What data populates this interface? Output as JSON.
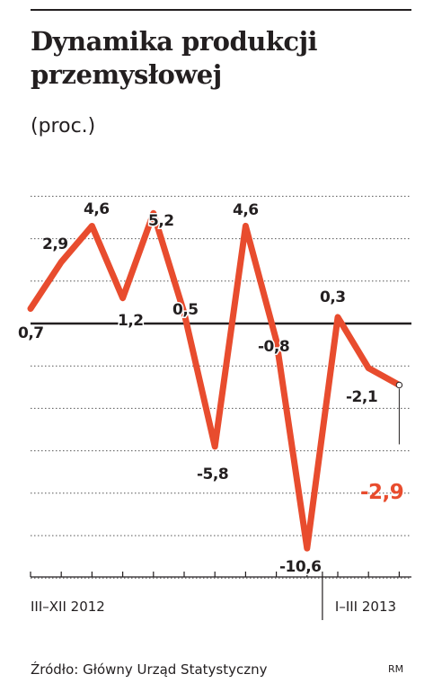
{
  "header": {
    "title_line1": "Dynamika produkcji",
    "title_line2": "przemysłowej",
    "unit": "(proc.)"
  },
  "chart_data": {
    "type": "line",
    "title": "Dynamika produkcji przemysłowej",
    "ylabel": "(proc.)",
    "ylim": [
      -12.5,
      7
    ],
    "grid": true,
    "zero_line": true,
    "x_groups": [
      "III–XII 2012",
      "I–III 2013"
    ],
    "series": [
      {
        "color": "#e84c2e",
        "values": [
          0.7,
          2.9,
          4.6,
          1.2,
          5.2,
          0.5,
          -5.8,
          4.6,
          -0.8,
          -10.6,
          0.3,
          -2.1,
          -2.9
        ],
        "labels": [
          "0,7",
          "2,9",
          "4,6",
          "1,2",
          "5,2",
          "0,5",
          "-5,8",
          "4,6",
          "-0,8",
          "-10,6",
          "0,3",
          "-2,1",
          "-2,9"
        ]
      }
    ],
    "highlight": {
      "index": 12,
      "label": "-2,9",
      "color": "#e84c2e"
    }
  },
  "footer": {
    "source": "Źródło: Główny Urząd Statystyczny",
    "credit": "RM"
  }
}
